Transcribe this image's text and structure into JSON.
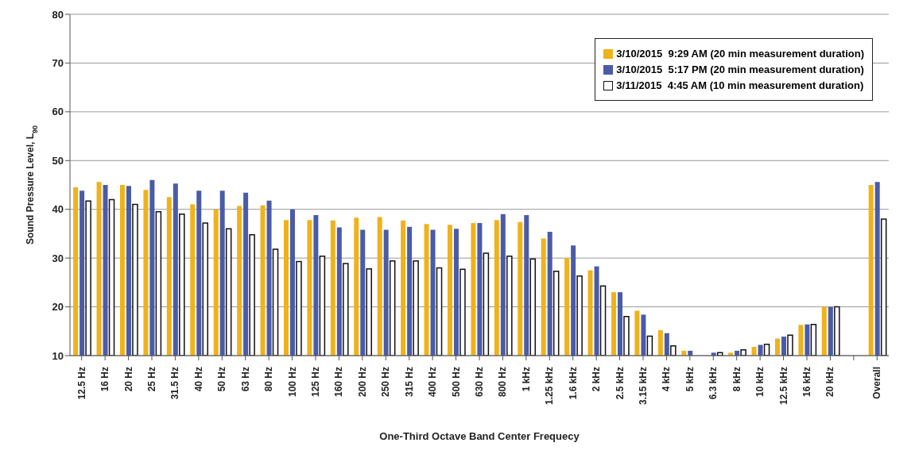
{
  "chart_data": {
    "type": "bar",
    "xlabel": "One-Third Octave Band Center Frequecy",
    "ylabel": "Sound Pressure Level, L$_{90}$",
    "categories": [
      "12.5 Hz",
      "16 Hz",
      "20 Hz",
      "25 Hz",
      "31.5 Hz",
      "40 Hz",
      "50 Hz",
      "63 Hz",
      "80 Hz",
      "100 Hz",
      "125 Hz",
      "160 Hz",
      "200 Hz",
      "250 Hz",
      "315 Hz",
      "400 Hz",
      "500 Hz",
      "630 Hz",
      "800 Hz",
      "1 kHz",
      "1.25 kHz",
      "1.6 kHz",
      "2 kHz",
      "2.5 kHz",
      "3.15 kHz",
      "4 kHz",
      "5 kHz",
      "6.3 kHz",
      "8 kHz",
      "10 kHz",
      "12.5 kHz",
      "16 kHz",
      "20 kHz",
      null,
      "Overall"
    ],
    "series": [
      {
        "name": "3/10/2015  9:29 AM (20 min measurement duration)",
        "color": "#f0b21a",
        "values": [
          44.5,
          45.6,
          45,
          44,
          42.5,
          41,
          40,
          40.7,
          40.8,
          37.8,
          37.8,
          37.7,
          38.3,
          38.4,
          37.7,
          37,
          36.8,
          37.2,
          37.8,
          37.4,
          34,
          30,
          27.5,
          23,
          19.2,
          15.2,
          11,
          null,
          10.6,
          11.8,
          13.5,
          16.3,
          20,
          null,
          45
        ]
      },
      {
        "name": "3/10/2015  5:17 PM (20 min measurement duration)",
        "color": "#4a5ba8",
        "values": [
          43.8,
          45,
          44.8,
          46,
          45.3,
          43.8,
          43.8,
          43.4,
          41.8,
          40,
          38.8,
          36.3,
          35.8,
          35.8,
          36.4,
          35.8,
          36,
          37.2,
          39,
          38.8,
          35.4,
          32.6,
          28.3,
          23,
          18.4,
          14.6,
          11,
          10.6,
          11,
          12.2,
          13.9,
          16.4,
          20,
          null,
          45.6
        ]
      },
      {
        "name": "3/11/2015  4:45 AM (10 min measurement duration)",
        "color": "#ffffff",
        "values": [
          41.7,
          42,
          41,
          39.5,
          39,
          37.2,
          36,
          34.8,
          31.8,
          29.3,
          30.4,
          28.9,
          27.8,
          29.4,
          29.4,
          28,
          27.7,
          31,
          30.4,
          29.8,
          27.3,
          26.3,
          24.3,
          18,
          14,
          12,
          null,
          10.6,
          11.2,
          12.3,
          14.2,
          16.4,
          20,
          null,
          38
        ]
      }
    ],
    "ylim": [
      10,
      80
    ],
    "yticks": [
      10,
      20,
      30,
      40,
      50,
      60,
      70,
      80
    ],
    "grid": "y",
    "legend": "top right"
  }
}
